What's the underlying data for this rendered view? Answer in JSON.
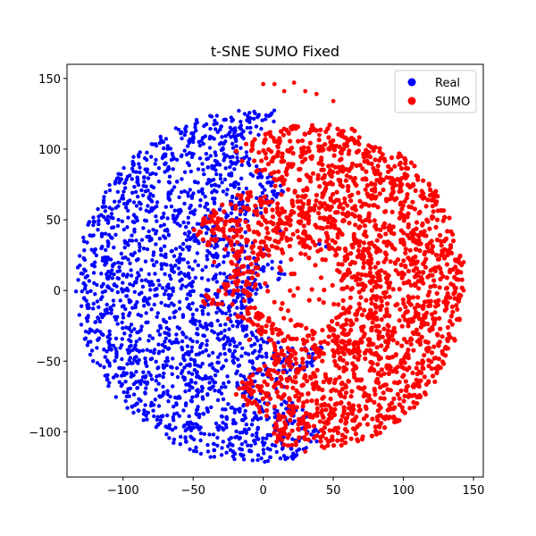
{
  "chart_data": {
    "type": "scatter",
    "title": "t-SNE SUMO Fixed",
    "xlabel": "",
    "ylabel": "",
    "xlim": [
      -140,
      157
    ],
    "ylim": [
      -132,
      160
    ],
    "x_ticks": [
      -100,
      -50,
      0,
      50,
      100,
      150
    ],
    "y_ticks": [
      -100,
      -50,
      0,
      50,
      100,
      150
    ],
    "x_tick_labels": [
      "−100",
      "−50",
      "0",
      "50",
      "100",
      "150"
    ],
    "y_tick_labels": [
      "−100",
      "−50",
      "0",
      "50",
      "100",
      "150"
    ],
    "grid": false,
    "legend_position": "top-right",
    "series": [
      {
        "name": "Real",
        "color": "#0000ff",
        "region": {
          "shape": "left-disc",
          "center": [
            -5,
            3
          ],
          "radius": 125,
          "approx_points": 3500
        },
        "sample_points": [
          [
            -128,
            5
          ],
          [
            -122,
            18
          ],
          [
            -115,
            40
          ],
          [
            -100,
            65
          ],
          [
            -85,
            80
          ],
          [
            -70,
            95
          ],
          [
            -50,
            108
          ],
          [
            -30,
            116
          ],
          [
            -10,
            121
          ],
          [
            5,
            124
          ],
          [
            -125,
            -10
          ],
          [
            -118,
            -35
          ],
          [
            -105,
            -60
          ],
          [
            -90,
            -80
          ],
          [
            -75,
            -95
          ],
          [
            -55,
            -107
          ],
          [
            -35,
            -113
          ],
          [
            -15,
            -117
          ],
          [
            5,
            -118
          ],
          [
            20,
            -112
          ],
          [
            -60,
            20
          ],
          [
            -40,
            0
          ],
          [
            -30,
            -30
          ],
          [
            -20,
            60
          ],
          [
            -10,
            -70
          ],
          [
            -70,
            -40
          ],
          [
            12,
            42
          ],
          [
            40,
            33
          ],
          [
            45,
            31
          ]
        ]
      },
      {
        "name": "SUMO",
        "color": "#ff0000",
        "region": {
          "shape": "right-disc",
          "center": [
            38,
            3
          ],
          "radius": 100,
          "approx_points": 3500
        },
        "sample_points": [
          [
            0,
            146
          ],
          [
            8,
            146
          ],
          [
            15,
            141
          ],
          [
            22,
            147
          ],
          [
            30,
            141
          ],
          [
            38,
            139
          ],
          [
            50,
            134
          ],
          [
            5,
            112
          ],
          [
            20,
            115
          ],
          [
            40,
            110
          ],
          [
            60,
            105
          ],
          [
            75,
            90
          ],
          [
            88,
            80
          ],
          [
            100,
            60
          ],
          [
            108,
            40
          ],
          [
            115,
            20
          ],
          [
            110,
            -10
          ],
          [
            105,
            -35
          ],
          [
            90,
            -55
          ],
          [
            75,
            -75
          ],
          [
            60,
            -90
          ],
          [
            45,
            -105
          ],
          [
            30,
            -114
          ],
          [
            -30,
            50
          ],
          [
            -35,
            20
          ],
          [
            -25,
            -20
          ],
          [
            -10,
            -35
          ],
          [
            10,
            -45
          ],
          [
            30,
            -60
          ],
          [
            50,
            -70
          ],
          [
            65,
            10
          ],
          [
            80,
            -20
          ],
          [
            -15,
            30
          ],
          [
            60,
            60
          ],
          [
            143,
            20
          ],
          [
            143,
            0
          ],
          [
            140,
            -20
          ],
          [
            132,
            -41
          ],
          [
            123,
            -55
          ],
          [
            118,
            -65
          ]
        ]
      }
    ]
  }
}
